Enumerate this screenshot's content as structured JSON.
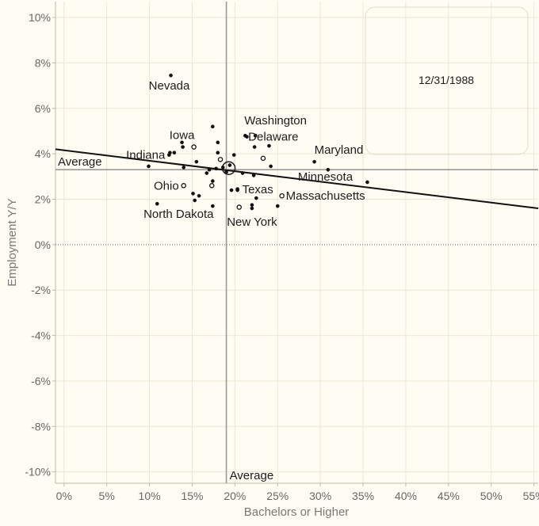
{
  "chart_data": {
    "type": "scatter",
    "date_label": "12/31/1988",
    "xlabel": "Bachelors or Higher",
    "ylabel": "Employment Y/Y",
    "xlim": [
      -1,
      55.5
    ],
    "ylim": [
      -10.5,
      10.7
    ],
    "x_ticks": [
      0,
      5,
      10,
      15,
      20,
      25,
      30,
      35,
      40,
      45,
      50,
      55
    ],
    "y_ticks": [
      10,
      8,
      6,
      4,
      2,
      0,
      -2,
      -4,
      -6,
      -8,
      -10
    ],
    "x_tick_labels": [
      "0%",
      "5%",
      "10%",
      "15%",
      "20%",
      "25%",
      "30%",
      "35%",
      "40%",
      "45%",
      "50%",
      "55%"
    ],
    "y_tick_labels": [
      "10%",
      "8%",
      "6%",
      "4%",
      "2%",
      "0%",
      "-2%",
      "-4%",
      "-6%",
      "-8%",
      "-10%"
    ],
    "grid": true,
    "zero_line": true,
    "reference_lines": {
      "x_average": 19.0,
      "y_average": 3.3,
      "x_label": "Average",
      "y_label": "Average"
    },
    "trend_line": {
      "x1": -1,
      "y1": 4.2,
      "x2": 55.5,
      "y2": 1.6
    },
    "points": [
      {
        "x": 12.5,
        "y": 7.45,
        "label": "Nevada"
      },
      {
        "x": 13.9,
        "y": 4.3,
        "label": "Iowa"
      },
      {
        "x": 12.3,
        "y": 3.95,
        "label": "Indiana"
      },
      {
        "x": 14.0,
        "y": 2.6,
        "label": "Ohio"
      },
      {
        "x": 10.9,
        "y": 1.8,
        "label": "North Dakota"
      },
      {
        "x": 21.2,
        "y": 4.8,
        "label": "Washington"
      },
      {
        "x": 22.3,
        "y": 4.3,
        "label": "Delaware"
      },
      {
        "x": 29.3,
        "y": 3.65,
        "label": "Maryland"
      },
      {
        "x": 30.9,
        "y": 3.3,
        "label": "Minnesota"
      },
      {
        "x": 20.3,
        "y": 2.4,
        "label": "Texas"
      },
      {
        "x": 25.5,
        "y": 2.15,
        "label": "Massachusetts"
      },
      {
        "x": 22.0,
        "y": 1.6,
        "label": "New York"
      },
      {
        "x": 9.9,
        "y": 3.45,
        "label": ""
      },
      {
        "x": 12.4,
        "y": 4.05,
        "label": ""
      },
      {
        "x": 12.9,
        "y": 4.05,
        "label": ""
      },
      {
        "x": 13.8,
        "y": 4.5,
        "label": ""
      },
      {
        "x": 14.0,
        "y": 3.4,
        "label": ""
      },
      {
        "x": 15.2,
        "y": 4.3,
        "label": ""
      },
      {
        "x": 15.5,
        "y": 3.65,
        "label": ""
      },
      {
        "x": 15.8,
        "y": 2.15,
        "label": ""
      },
      {
        "x": 15.1,
        "y": 2.25,
        "label": ""
      },
      {
        "x": 15.3,
        "y": 1.95,
        "label": ""
      },
      {
        "x": 16.7,
        "y": 3.15,
        "label": ""
      },
      {
        "x": 17.0,
        "y": 3.3,
        "label": ""
      },
      {
        "x": 17.3,
        "y": 2.6,
        "label": ""
      },
      {
        "x": 17.4,
        "y": 2.8,
        "label": ""
      },
      {
        "x": 17.4,
        "y": 5.2,
        "label": ""
      },
      {
        "x": 17.4,
        "y": 1.7,
        "label": ""
      },
      {
        "x": 17.8,
        "y": 3.35,
        "label": ""
      },
      {
        "x": 18.0,
        "y": 4.5,
        "label": ""
      },
      {
        "x": 18.0,
        "y": 4.05,
        "label": ""
      },
      {
        "x": 18.3,
        "y": 3.75,
        "label": ""
      },
      {
        "x": 18.6,
        "y": 3.4,
        "label": ""
      },
      {
        "x": 19.0,
        "y": 3.2,
        "label": ""
      },
      {
        "x": 19.4,
        "y": 3.5,
        "label": ""
      },
      {
        "x": 19.6,
        "y": 2.4,
        "label": ""
      },
      {
        "x": 19.9,
        "y": 3.95,
        "label": ""
      },
      {
        "x": 20.3,
        "y": 2.45,
        "label": ""
      },
      {
        "x": 20.5,
        "y": 1.65,
        "label": ""
      },
      {
        "x": 20.9,
        "y": 3.15,
        "label": ""
      },
      {
        "x": 21.4,
        "y": 4.75,
        "label": ""
      },
      {
        "x": 22.0,
        "y": 1.75,
        "label": ""
      },
      {
        "x": 22.2,
        "y": 3.05,
        "label": ""
      },
      {
        "x": 22.4,
        "y": 4.8,
        "label": ""
      },
      {
        "x": 22.5,
        "y": 2.05,
        "label": ""
      },
      {
        "x": 23.3,
        "y": 3.8,
        "label": ""
      },
      {
        "x": 24.0,
        "y": 4.35,
        "label": ""
      },
      {
        "x": 24.2,
        "y": 3.45,
        "label": ""
      },
      {
        "x": 25.0,
        "y": 1.7,
        "label": ""
      },
      {
        "x": 35.5,
        "y": 2.75,
        "label": ""
      }
    ]
  }
}
